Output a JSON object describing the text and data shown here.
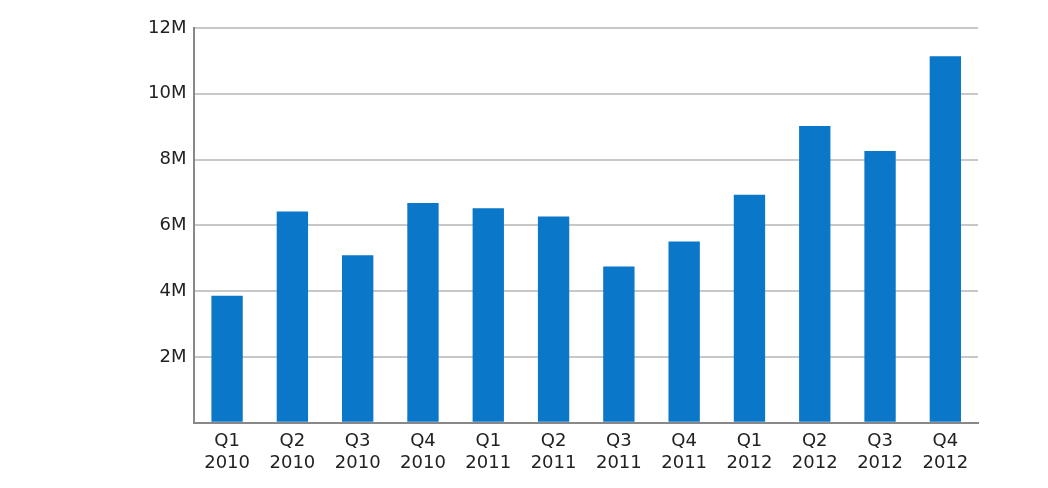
{
  "chart_data": {
    "type": "bar",
    "categories": [
      "Q1 2010",
      "Q2 2010",
      "Q3 2010",
      "Q4 2010",
      "Q1 2011",
      "Q2 2011",
      "Q3 2011",
      "Q4 2011",
      "Q1 2012",
      "Q2 2012",
      "Q3 2012",
      "Q4 2012"
    ],
    "values": [
      3860000,
      6420000,
      5090000,
      6680000,
      6520000,
      6270000,
      4750000,
      5510000,
      6930000,
      9020000,
      8260000,
      11140000
    ],
    "color": "#0a77c8",
    "ylim": [
      0,
      12000000
    ],
    "yticks": [
      {
        "value": 0,
        "label": null
      },
      {
        "value": 2000000,
        "label": "2M"
      },
      {
        "value": 4000000,
        "label": "4M"
      },
      {
        "value": 6000000,
        "label": "6M"
      },
      {
        "value": 8000000,
        "label": "8M"
      },
      {
        "value": 10000000,
        "label": "10M"
      },
      {
        "value": 12000000,
        "label": "12M"
      }
    ],
    "grid": "y",
    "legend": false
  }
}
